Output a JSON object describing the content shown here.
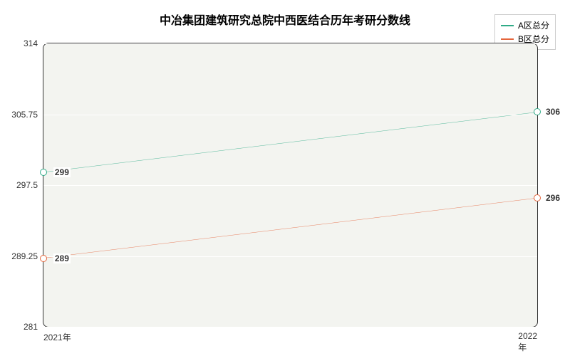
{
  "chart": {
    "type": "line",
    "title": "中冶集团建筑研究总院中西医结合历年考研分数线",
    "title_fontsize": 16,
    "title_color": "#333333",
    "background_color": "#f3f4f0",
    "border_color": "#333333",
    "grid_color": "#ffffff",
    "x_categories": [
      "2021年",
      "2022年"
    ],
    "ylim": [
      281,
      314
    ],
    "yticks": [
      281,
      289.25,
      297.5,
      305.75,
      314
    ],
    "ytick_labels": [
      "281",
      "289.25",
      "297.5",
      "305.75",
      "314"
    ],
    "series": [
      {
        "name": "A区总分",
        "color": "#2fab87",
        "values": [
          299,
          306
        ]
      },
      {
        "name": "B区总分",
        "color": "#e5653c",
        "values": [
          289,
          296
        ]
      }
    ],
    "point_label_fontsize": 12,
    "axis_label_fontsize": 12,
    "legend_fontsize": 12
  }
}
